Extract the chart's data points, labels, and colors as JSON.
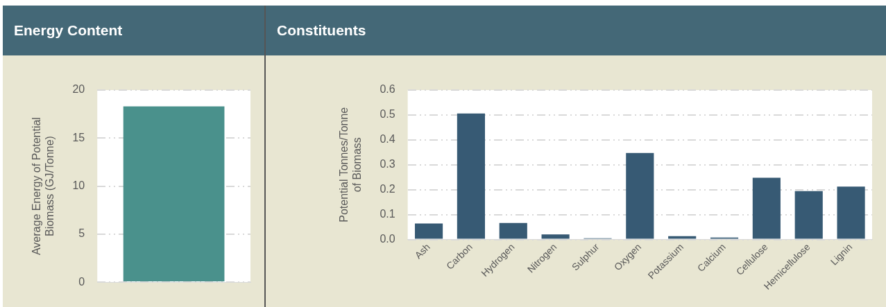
{
  "chart_data": [
    {
      "type": "bar",
      "title": "Energy Content",
      "ylabel": "Average Energy of Potential Biomass (GJ/Tonne)",
      "categories": [
        null
      ],
      "values": [
        18.3
      ],
      "color": "#4a918c",
      "ylim": [
        0,
        20
      ],
      "yticks": [
        0,
        5,
        10,
        15,
        20
      ],
      "grid": "y"
    },
    {
      "type": "bar",
      "title": "Constituents",
      "ylabel": "Potential Tonnes/Tonne of Biomass",
      "categories": [
        "Ash",
        "Carbon",
        "Hydrogen",
        "Nitrogen",
        "Sulphur",
        "Oxygen",
        "Potassium",
        "Calcium",
        "Cellulose",
        "Hemicellulose",
        "Lignin"
      ],
      "values": [
        0.064,
        0.506,
        0.066,
        0.02,
        0.005,
        0.347,
        0.013,
        0.008,
        0.248,
        0.194,
        0.212
      ],
      "color": "#375a74",
      "ylim": [
        0,
        0.6
      ],
      "yticks": [
        {
          "value": 0,
          "label": "0.0"
        },
        0.1,
        0.2,
        0.3,
        0.4,
        0.5,
        0.6
      ],
      "grid": "y"
    }
  ]
}
